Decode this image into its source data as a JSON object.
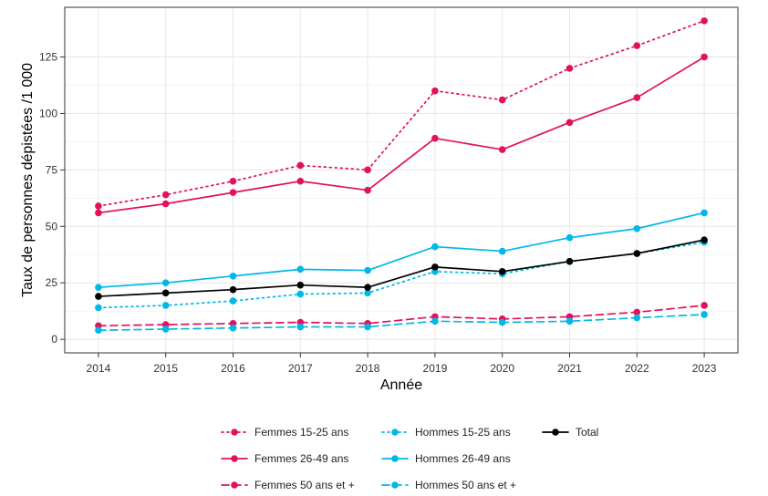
{
  "chart_data": {
    "type": "line",
    "title": "",
    "xlabel": "Année",
    "ylabel": "Taux de personnes dépistées /1 000",
    "x": [
      2014,
      2015,
      2016,
      2017,
      2018,
      2019,
      2020,
      2021,
      2022,
      2023
    ],
    "xticks": [
      "2014",
      "2015",
      "2016",
      "2017",
      "2018",
      "2019",
      "2020",
      "2021",
      "2022",
      "2023"
    ],
    "ylim": [
      -6,
      147
    ],
    "yticks": [
      0,
      25,
      50,
      75,
      100,
      125
    ],
    "grid": true,
    "legend_position": "bottom",
    "series": [
      {
        "name": "Femmes 15-25 ans",
        "color": "#e0115f",
        "dash": "dotted",
        "values": [
          59,
          64,
          70,
          77,
          75,
          110,
          106,
          120,
          130,
          141
        ]
      },
      {
        "name": "Hommes 15-25 ans",
        "color": "#00b8e6",
        "dash": "dotted",
        "values": [
          14,
          15,
          17,
          20,
          20.5,
          30,
          29,
          34.5,
          38,
          43
        ]
      },
      {
        "name": "Total",
        "color": "#000000",
        "dash": "solid",
        "values": [
          19,
          20.5,
          22,
          24,
          23,
          32,
          30,
          34.5,
          38,
          44
        ]
      },
      {
        "name": "Femmes 26-49 ans",
        "color": "#e0115f",
        "dash": "solid",
        "values": [
          56,
          60,
          65,
          70,
          66,
          89,
          84,
          96,
          107,
          125
        ]
      },
      {
        "name": "Hommes 26-49 ans",
        "color": "#00b8e6",
        "dash": "solid",
        "values": [
          23,
          25,
          28,
          31,
          30.5,
          41,
          39,
          45,
          49,
          56
        ]
      },
      {
        "name": "Femmes 50 ans et +",
        "color": "#e0115f",
        "dash": "dashed",
        "values": [
          6,
          6.5,
          7,
          7.5,
          7,
          10,
          9,
          10,
          12,
          15
        ]
      },
      {
        "name": "Hommes 50 ans et +",
        "color": "#00b8e6",
        "dash": "dashed",
        "values": [
          4,
          4.5,
          5,
          5.5,
          5.5,
          8,
          7.5,
          8,
          9.5,
          11
        ]
      }
    ]
  }
}
